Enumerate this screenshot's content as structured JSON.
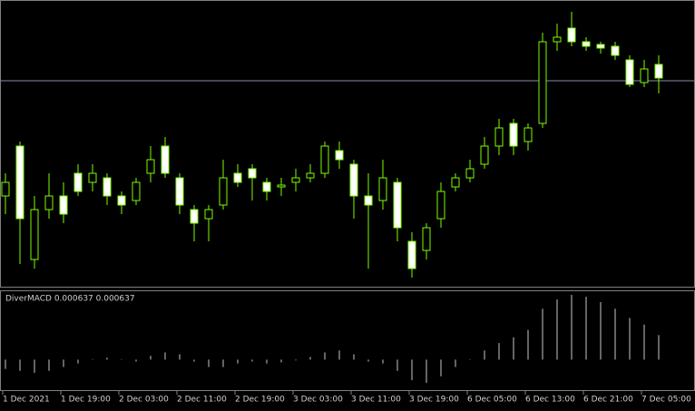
{
  "chart_data": [
    {
      "type": "candlestick",
      "categories": [
        "1 Dec 2021",
        null,
        null,
        null,
        "1 Dec 19:00",
        null,
        null,
        null,
        "2 Dec 03:00",
        null,
        null,
        null,
        "2 Dec 11:00",
        null,
        null,
        null,
        "2 Dec 19:00",
        null,
        null,
        null,
        "3 Dec 03:00",
        null,
        null,
        null,
        "3 Dec 11:00",
        null,
        null,
        null,
        "3 Dec 19:00",
        null,
        null,
        null,
        "6 Dec 05:00",
        null,
        null,
        null,
        "6 Dec 13:00",
        null,
        null,
        null,
        "6 Dec 21:00",
        null,
        null,
        null,
        "7 Dec 05:00",
        null
      ],
      "open": [
        100,
        155,
        30,
        85,
        100,
        125,
        115,
        120,
        100,
        95,
        125,
        155,
        120,
        85,
        75,
        90,
        125,
        130,
        115,
        110,
        115,
        120,
        125,
        150,
        135,
        100,
        95,
        115,
        50,
        40,
        75,
        110,
        120,
        135,
        155,
        180,
        160,
        180,
        270,
        285,
        270,
        267,
        265,
        250,
        225,
        245
      ],
      "high": [
        125,
        160,
        100,
        125,
        115,
        135,
        135,
        125,
        105,
        120,
        155,
        165,
        125,
        90,
        90,
        140,
        135,
        135,
        120,
        120,
        130,
        135,
        160,
        160,
        140,
        125,
        140,
        120,
        60,
        70,
        115,
        125,
        140,
        165,
        185,
        185,
        180,
        280,
        290,
        303,
        275,
        270,
        270,
        255,
        250,
        255
      ],
      "low": [
        80,
        25,
        20,
        75,
        70,
        100,
        105,
        90,
        80,
        90,
        115,
        120,
        80,
        50,
        50,
        85,
        110,
        95,
        95,
        100,
        105,
        115,
        120,
        130,
        75,
        20,
        85,
        50,
        10,
        30,
        65,
        105,
        115,
        130,
        145,
        145,
        150,
        175,
        260,
        265,
        260,
        257,
        250,
        220,
        220,
        213
      ],
      "close": [
        115,
        75,
        85,
        100,
        80,
        105,
        125,
        100,
        90,
        115,
        140,
        125,
        90,
        70,
        85,
        120,
        115,
        120,
        105,
        112,
        120,
        125,
        155,
        140,
        100,
        90,
        120,
        65,
        20,
        65,
        105,
        120,
        130,
        155,
        175,
        155,
        175,
        270,
        275,
        270,
        265,
        263,
        255,
        223,
        240,
        230
      ],
      "ylim": [
        0,
        315
      ],
      "hline": 227,
      "up_color": "#000000",
      "down_color": "#ffffff",
      "wick_color": "#7cfc00"
    },
    {
      "type": "bar",
      "title": "DiverMACD 0.000637 0.000637",
      "values": [
        -0.00024,
        -0.00029,
        -0.00034,
        -0.00029,
        -0.00019,
        -0.0001,
        0,
        5e-05,
        0,
        -5e-05,
        0.0001,
        0.00019,
        0.00014,
        -5e-05,
        -0.00019,
        -0.00019,
        -0.0001,
        -5e-05,
        -0.0001,
        -7e-05,
        -2e-05,
        7e-05,
        0.00019,
        0.00024,
        0.00014,
        -5e-05,
        -0.0001,
        -0.00029,
        -0.00053,
        -0.0006,
        -0.00043,
        -0.00019,
        0,
        0.00024,
        0.00043,
        0.00058,
        0.00077,
        0.00132,
        0.00156,
        0.00168,
        0.00163,
        0.00149,
        0.00132,
        0.00108,
        0.00091,
        0.000637
      ],
      "ylim": [
        -0.00079,
        0.00175
      ],
      "color": "#c8c8c8"
    }
  ]
}
